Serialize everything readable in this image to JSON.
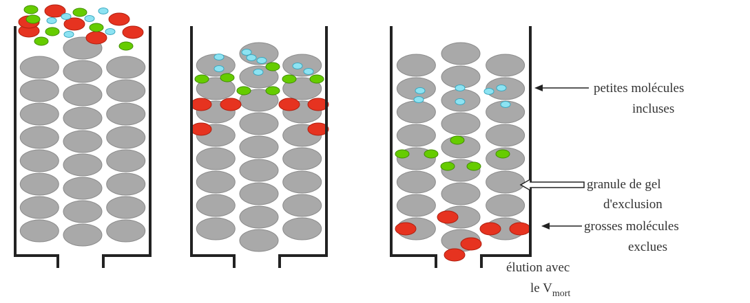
{
  "annotations": [
    {
      "lines": [
        "petites molécules",
        "incluses"
      ]
    },
    {
      "lines": [
        "granule de gel",
        "d'exclusion"
      ]
    },
    {
      "lines": [
        "grosses molécules",
        "exclues"
      ]
    }
  ],
  "elution": {
    "text": "élution avec",
    "volume": "le V",
    "subscript": "mort"
  }
}
